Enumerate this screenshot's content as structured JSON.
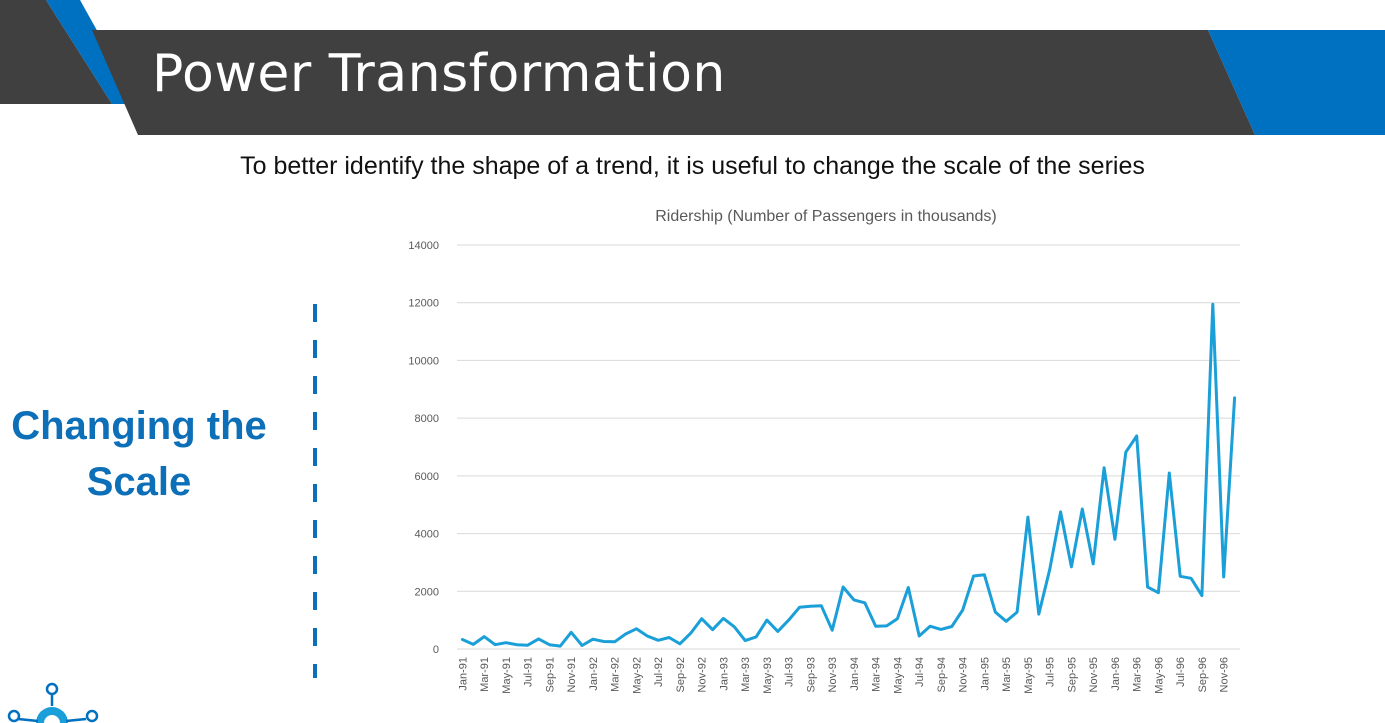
{
  "slide": {
    "title": "Power Transformation",
    "subtitle": "To better identify the shape of a trend, it is useful to change the scale of the series",
    "section_label": "Changing the Scale",
    "colors": {
      "banner_dark": "#404040",
      "accent_blue": "#0070c0",
      "label_blue": "#0c6fb8"
    }
  },
  "logo": {
    "icon": "lightbulb-network-logo"
  },
  "chart_data": {
    "type": "line",
    "title": "Ridership (Number of Passengers in thousands)",
    "xlabel": "",
    "ylabel": "",
    "ylim": [
      0,
      14000
    ],
    "yticks": [
      0,
      2000,
      4000,
      6000,
      8000,
      10000,
      12000,
      14000
    ],
    "grid": true,
    "legend": "none",
    "line_color": "#1a9fd8",
    "x": [
      "Jan-91",
      "Feb-91",
      "Mar-91",
      "Apr-91",
      "May-91",
      "Jun-91",
      "Jul-91",
      "Aug-91",
      "Sep-91",
      "Oct-91",
      "Nov-91",
      "Dec-91",
      "Jan-92",
      "Feb-92",
      "Mar-92",
      "Apr-92",
      "May-92",
      "Jun-92",
      "Jul-92",
      "Aug-92",
      "Sep-92",
      "Oct-92",
      "Nov-92",
      "Dec-92",
      "Jan-93",
      "Feb-93",
      "Mar-93",
      "Apr-93",
      "May-93",
      "Jun-93",
      "Jul-93",
      "Aug-93",
      "Sep-93",
      "Oct-93",
      "Nov-93",
      "Dec-93",
      "Jan-94",
      "Feb-94",
      "Mar-94",
      "Apr-94",
      "May-94",
      "Jun-94",
      "Jul-94",
      "Aug-94",
      "Sep-94",
      "Oct-94",
      "Nov-94",
      "Dec-94",
      "Jan-95",
      "Feb-95",
      "Mar-95",
      "Apr-95",
      "May-95",
      "Jun-95",
      "Jul-95",
      "Aug-95",
      "Sep-95",
      "Oct-95",
      "Nov-95",
      "Dec-95",
      "Jan-96",
      "Feb-96",
      "Mar-96",
      "Apr-96",
      "May-96",
      "Jun-96",
      "Jul-96",
      "Aug-96",
      "Sep-96",
      "Oct-96",
      "Nov-96",
      "Dec-96"
    ],
    "x_tick_labels": [
      "Jan-91",
      "Mar-91",
      "May-91",
      "Jul-91",
      "Sep-91",
      "Nov-91",
      "Jan-92",
      "Mar-92",
      "May-92",
      "Jul-92",
      "Sep-92",
      "Nov-92",
      "Jan-93",
      "Mar-93",
      "May-93",
      "Jul-93",
      "Sep-93",
      "Nov-93",
      "Jan-94",
      "Mar-94",
      "May-94",
      "Jul-94",
      "Sep-94",
      "Nov-94",
      "Jan-95",
      "Mar-95",
      "May-95",
      "Jul-95",
      "Sep-95",
      "Nov-95",
      "Jan-96",
      "Mar-96",
      "May-96",
      "Jul-96",
      "Sep-96",
      "Nov-96"
    ],
    "series": [
      {
        "values": [
          330,
          160,
          430,
          150,
          220,
          150,
          130,
          350,
          150,
          100,
          580,
          120,
          340,
          260,
          250,
          520,
          700,
          450,
          300,
          400,
          180,
          550,
          1050,
          670,
          1060,
          770,
          290,
          420,
          1000,
          610,
          1000,
          1450,
          1480,
          1500,
          650,
          2150,
          1700,
          1600,
          790,
          800,
          1050,
          2130,
          450,
          790,
          680,
          780,
          1350,
          2530,
          2570,
          1280,
          960,
          1280,
          4570,
          1210,
          2750,
          4750,
          2850,
          4850,
          2950,
          6280,
          3800,
          6820,
          7380,
          2150,
          1950,
          6100,
          2520,
          2450,
          1850,
          11950,
          2500,
          8700
        ]
      }
    ]
  }
}
